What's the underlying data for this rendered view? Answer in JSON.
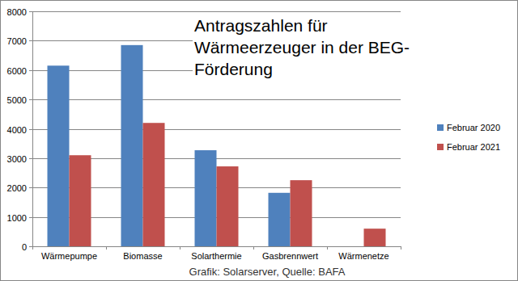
{
  "chart_data": {
    "type": "bar",
    "title": "Antragszahlen für Wärmeerzeuger in der BEG-Förderung",
    "categories": [
      "Wärmepumpe",
      "Biomasse",
      "Solarthermie",
      "Gasbrennwert",
      "Wärmenetze"
    ],
    "series": [
      {
        "name": "Februar 2020",
        "color": "#4f81bd",
        "values": [
          6150,
          6850,
          3270,
          1820,
          0
        ]
      },
      {
        "name": "Februar 2021",
        "color": "#c0504d",
        "values": [
          3100,
          4200,
          2720,
          2250,
          600
        ]
      }
    ],
    "ylim": [
      0,
      8000
    ],
    "yticks": [
      0,
      1000,
      2000,
      3000,
      4000,
      5000,
      6000,
      7000,
      8000
    ],
    "grid": true,
    "legend": "right",
    "annotations": [
      "Grafik: Solarserver, Quelle: BAFA"
    ]
  }
}
